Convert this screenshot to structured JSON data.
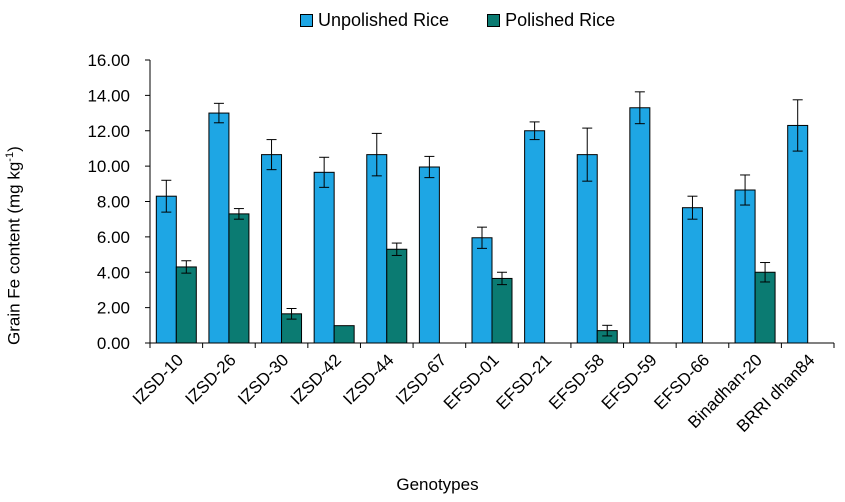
{
  "chart_data": {
    "type": "bar",
    "xlabel": "Genotypes",
    "ylabel": {
      "main": "Grain Fe content (mg kg",
      "sup": "-1",
      "end": ")"
    },
    "ylim": [
      0,
      16
    ],
    "yticks": [
      "0.00",
      "2.00",
      "4.00",
      "6.00",
      "8.00",
      "10.00",
      "12.00",
      "14.00",
      "16.00"
    ],
    "ytick_values": [
      0,
      2,
      4,
      6,
      8,
      10,
      12,
      14,
      16
    ],
    "grid": false,
    "legend_position": "top-center",
    "categories": [
      "IZSD-10",
      "IZSD-26",
      "IZSD-30",
      "IZSD-42",
      "IZSD-44",
      "IZSD-67",
      "EFSD-01",
      "EFSD-21",
      "EFSD-58",
      "EFSD-59",
      "EFSD-66",
      "Binadhan-20",
      "BRRI dhan84"
    ],
    "series": [
      {
        "name": "Unpolished Rice",
        "color": "#1ea6e4",
        "values": [
          8.3,
          13.0,
          10.65,
          9.65,
          10.65,
          9.95,
          5.95,
          12.0,
          10.65,
          13.3,
          7.65,
          8.65,
          12.3
        ],
        "errors": [
          0.9,
          0.55,
          0.85,
          0.85,
          1.2,
          0.6,
          0.6,
          0.5,
          1.5,
          0.9,
          0.65,
          0.85,
          1.45
        ]
      },
      {
        "name": "Polished Rice",
        "color": "#0b7b72",
        "values": [
          4.3,
          7.3,
          1.65,
          0.98,
          5.3,
          null,
          3.65,
          null,
          0.7,
          null,
          null,
          4.0,
          null
        ],
        "errors": [
          0.35,
          0.3,
          0.3,
          null,
          0.35,
          null,
          0.35,
          null,
          0.3,
          null,
          null,
          0.55,
          null
        ]
      }
    ]
  }
}
